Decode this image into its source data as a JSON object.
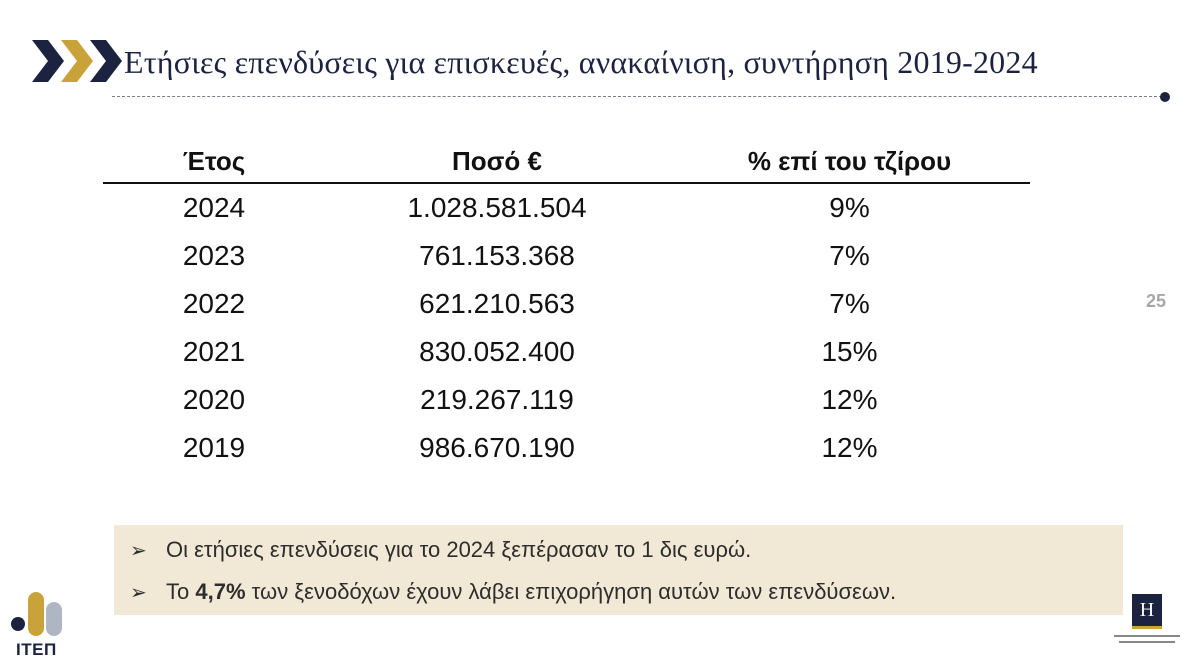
{
  "header": {
    "title": "Ετήσιες επενδύσεις για επισκευές, ανακαίνιση, συντήρηση 2019-2024",
    "chevron_colors": [
      "#1c2340",
      "#c9a23a",
      "#1c2340"
    ]
  },
  "table": {
    "headers": {
      "year": "Έτος",
      "amount": "Ποσό €",
      "percent": "% επί του τζίρου"
    },
    "rows": [
      {
        "year": "2024",
        "amount": "1.028.581.504",
        "percent": "9%"
      },
      {
        "year": "2023",
        "amount": "761.153.368",
        "percent": "7%"
      },
      {
        "year": "2022",
        "amount": "621.210.563",
        "percent": "7%"
      },
      {
        "year": "2021",
        "amount": "830.052.400",
        "percent": "15%"
      },
      {
        "year": "2020",
        "amount": "219.267.119",
        "percent": "12%"
      },
      {
        "year": "2019",
        "amount": "986.670.190",
        "percent": "12%"
      }
    ]
  },
  "page_number": "25",
  "notes": {
    "bullet_icon": "arrow-bullet-icon",
    "note1": "Οι ετήσιες επενδύσεις για το 2024 ξεπέρασαν το 1 δις ευρώ.",
    "note2_prefix": "Το ",
    "note2_bold": "4,7%",
    "note2_suffix": " των ξενοδόχων έχουν λάβει επιχορήγηση αυτών των επενδύσεων."
  },
  "logos": {
    "itep_text": "ΙΤΕΠ",
    "hotel_letter": "H"
  },
  "colors": {
    "navy": "#1c2340",
    "gold": "#c9a23a",
    "note_bg": "#f2e8d6"
  }
}
